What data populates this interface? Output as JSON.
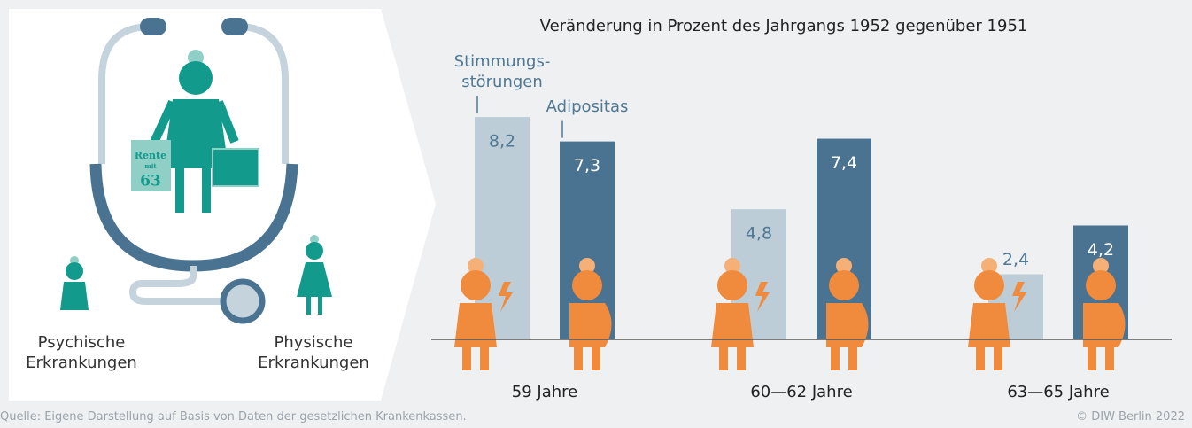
{
  "chart_data": {
    "type": "bar",
    "title": "Veränderung in Prozent des Jahrgangs 1952 gegenüber 1951",
    "categories": [
      "59 Jahre",
      "60—62 Jahre",
      "63—65 Jahre"
    ],
    "series": [
      {
        "name": "Stimmungs-\nstörungen",
        "color": "#bccdd8",
        "values": [
          8.2,
          4.8,
          2.4
        ],
        "value_labels": [
          "8,2",
          "4,8",
          "2,4"
        ]
      },
      {
        "name": "Adipositas",
        "color": "#4a7291",
        "values": [
          7.3,
          7.4,
          4.2
        ],
        "value_labels": [
          "7,3",
          "7,4",
          "4,2"
        ]
      }
    ],
    "ylim": [
      0,
      10
    ]
  },
  "illustration": {
    "sign": [
      "Rente",
      "mit",
      "63"
    ],
    "left_label": "Psychische\nErkrankungen",
    "right_label": "Physische\nErkrankungen"
  },
  "footer": {
    "source": "Quelle: Eigene Darstellung auf Basis von Daten der gesetzlichen Krankenkassen.",
    "copyright": "© DIW Berlin 2022"
  }
}
